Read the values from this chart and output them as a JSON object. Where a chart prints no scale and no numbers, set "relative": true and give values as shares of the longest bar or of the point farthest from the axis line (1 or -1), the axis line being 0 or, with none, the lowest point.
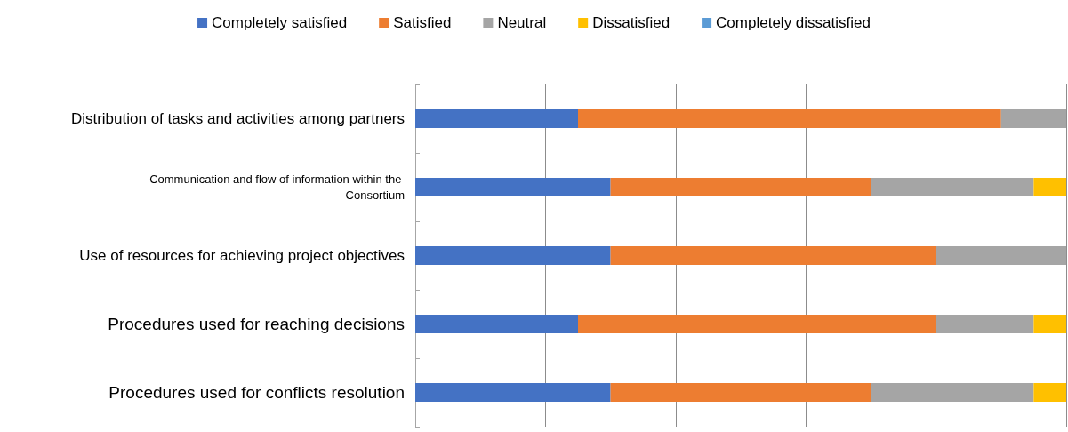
{
  "chart_data": {
    "type": "bar",
    "orientation": "horizontal",
    "stacked": true,
    "relative": true,
    "grid": "x",
    "legend": "top",
    "categories": [
      "Distribution of tasks and activities among partners",
      "Communication and flow of information within the Consortium",
      "Use of resources for achieving project objectives",
      "Procedures used for reaching decisions",
      "Procedures used for conflicts resolution"
    ],
    "series": [
      {
        "name": "Completely satisfied",
        "color": "#4472c4",
        "values": [
          0.25,
          0.3,
          0.3,
          0.25,
          0.3
        ]
      },
      {
        "name": "Satisfied",
        "color": "#ed7d31",
        "values": [
          0.65,
          0.4,
          0.5,
          0.55,
          0.4
        ]
      },
      {
        "name": "Neutral",
        "color": "#a5a5a5",
        "values": [
          0.1,
          0.25,
          0.2,
          0.15,
          0.25
        ]
      },
      {
        "name": "Dissatisfied",
        "color": "#ffc000",
        "values": [
          0,
          0.05,
          0,
          0.05,
          0.05
        ]
      },
      {
        "name": "Completely dissatisfied",
        "color": "#5b9bd5",
        "values": [
          0,
          0,
          0,
          0,
          0
        ]
      }
    ]
  }
}
